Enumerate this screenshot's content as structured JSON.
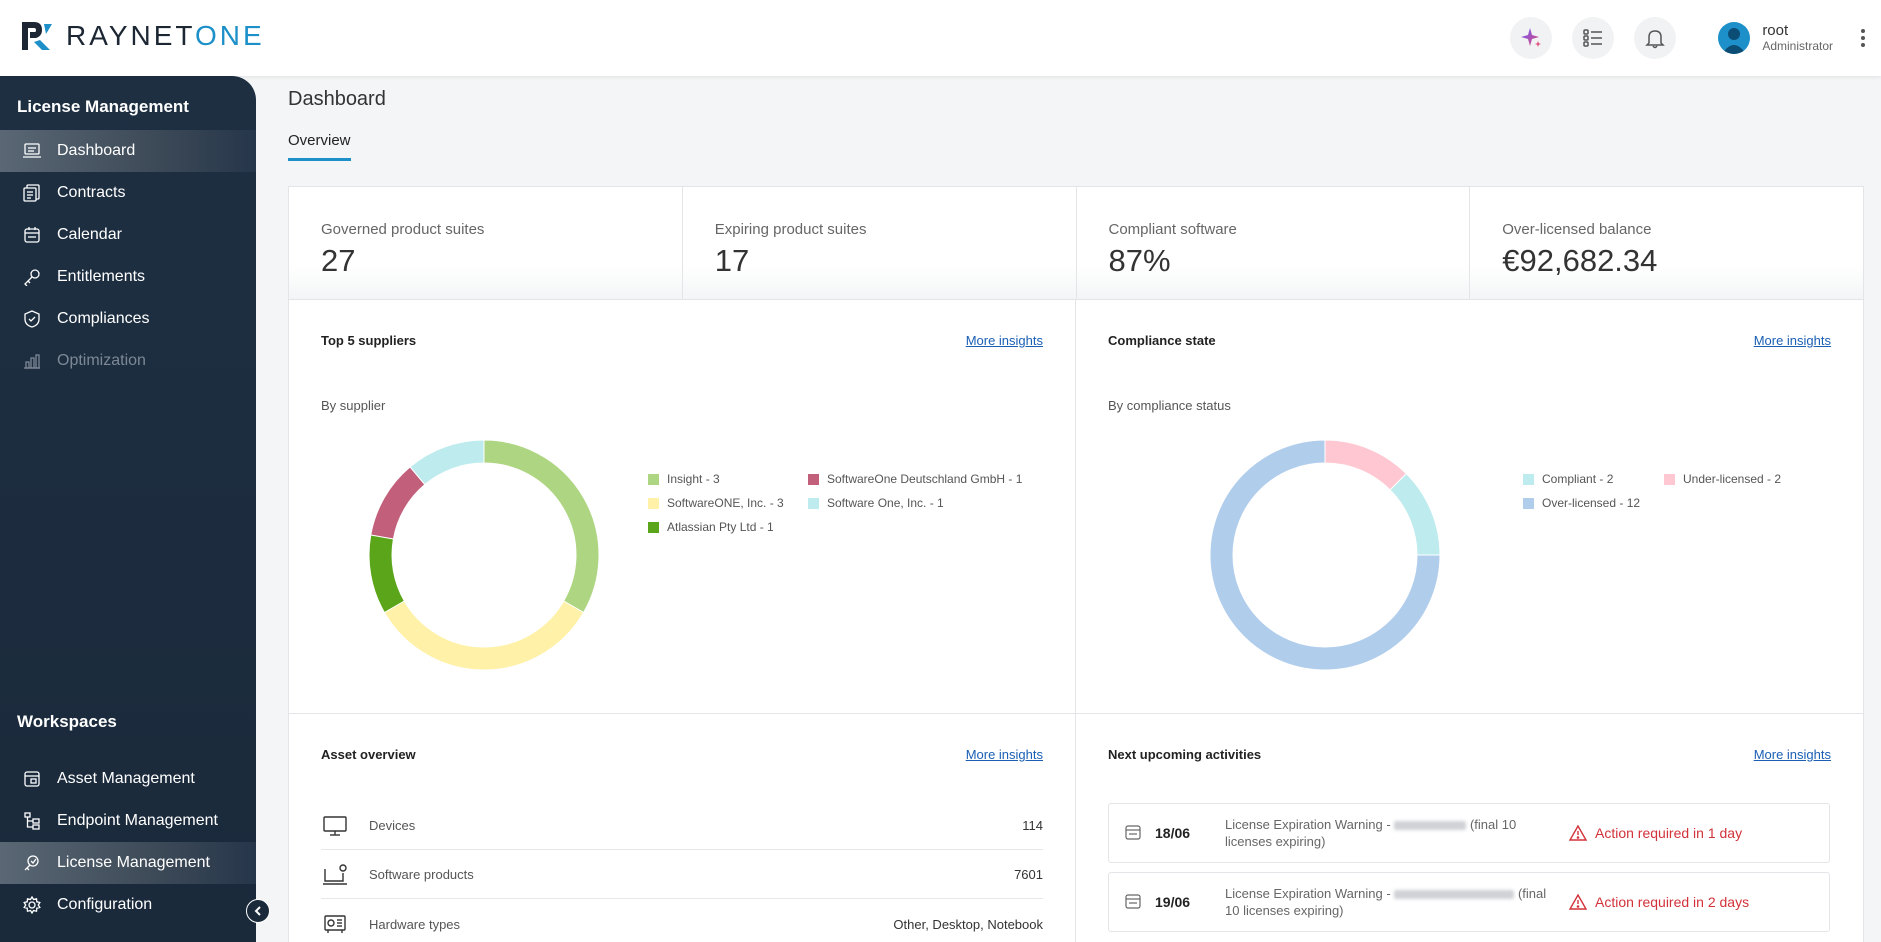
{
  "app": {
    "logo_text_a": "RAYNET",
    "logo_text_b": "ONE",
    "user_name": "root",
    "user_role": "Administrator",
    "accent": "#1d8fc9"
  },
  "sidebar": {
    "section_title": "License Management",
    "items": [
      {
        "label": "Dashboard",
        "icon": "dashboard-icon"
      },
      {
        "label": "Contracts",
        "icon": "contracts-icon"
      },
      {
        "label": "Calendar",
        "icon": "calendar-icon"
      },
      {
        "label": "Entitlements",
        "icon": "key-icon"
      },
      {
        "label": "Compliances",
        "icon": "shield-check-icon"
      },
      {
        "label": "Optimization",
        "icon": "bar-chart-icon"
      }
    ],
    "workspaces_title": "Workspaces",
    "workspaces": [
      {
        "label": "Asset Management",
        "icon": "asset-icon"
      },
      {
        "label": "Endpoint Management",
        "icon": "endpoint-icon"
      },
      {
        "label": "License Management",
        "icon": "license-icon"
      },
      {
        "label": "Configuration",
        "icon": "gear-icon"
      }
    ]
  },
  "page": {
    "title": "Dashboard",
    "tab": "Overview"
  },
  "kpis": [
    {
      "label": "Governed product suites",
      "value": "27"
    },
    {
      "label": "Expiring product suites",
      "value": "17"
    },
    {
      "label": "Compliant software",
      "value": "87%"
    },
    {
      "label": "Over-licensed balance",
      "value": "€92,682.34"
    }
  ],
  "suppliers_card": {
    "title": "Top 5 suppliers",
    "more": "More insights",
    "subtitle": "By supplier",
    "legend": [
      "Insight - 3",
      "SoftwareOne Deutschland GmbH - 1",
      "SoftwareONE, Inc. - 3",
      "Software One, Inc. - 1",
      "Atlassian Pty Ltd - 1"
    ]
  },
  "compliance_card": {
    "title": "Compliance state",
    "more": "More insights",
    "subtitle": "By compliance status",
    "legend": [
      "Compliant - 2",
      "Under-licensed - 2",
      "Over-licensed - 12"
    ]
  },
  "asset_card": {
    "title": "Asset overview",
    "more": "More insights",
    "rows": [
      {
        "label": "Devices",
        "value": "114"
      },
      {
        "label": "Software products",
        "value": "7601"
      },
      {
        "label": "Hardware types",
        "value": "Other, Desktop, Notebook"
      }
    ]
  },
  "activities_card": {
    "title": "Next upcoming activities",
    "more": "More insights",
    "items": [
      {
        "date": "18/06",
        "desc_a": "License Expiration Warning - ",
        "desc_b": " (final 10 licenses expiring)",
        "status": "Action required in 1 day"
      },
      {
        "date": "19/06",
        "desc_a": "License Expiration Warning - ",
        "desc_b": " (final 10 licenses expiring)",
        "status": "Action required in 2 days"
      }
    ]
  },
  "chart_data": [
    {
      "type": "pie",
      "title": "Top 5 suppliers",
      "subtitle": "By supplier",
      "categories": [
        "Insight",
        "SoftwareOne Deutschland GmbH",
        "SoftwareONE, Inc.",
        "Software One, Inc.",
        "Atlassian Pty Ltd"
      ],
      "values": [
        3,
        1,
        3,
        1,
        1
      ],
      "colors": [
        "#aed581",
        "#c2607c",
        "#fff1a8",
        "#bdebee",
        "#5aa51a"
      ],
      "legend_position": "right"
    },
    {
      "type": "pie",
      "title": "Compliance state",
      "subtitle": "By compliance status",
      "categories": [
        "Compliant",
        "Under-licensed",
        "Over-licensed"
      ],
      "values": [
        2,
        2,
        12
      ],
      "colors": [
        "#bdebee",
        "#ffc7d1",
        "#b0cdec"
      ],
      "legend_position": "right"
    }
  ]
}
